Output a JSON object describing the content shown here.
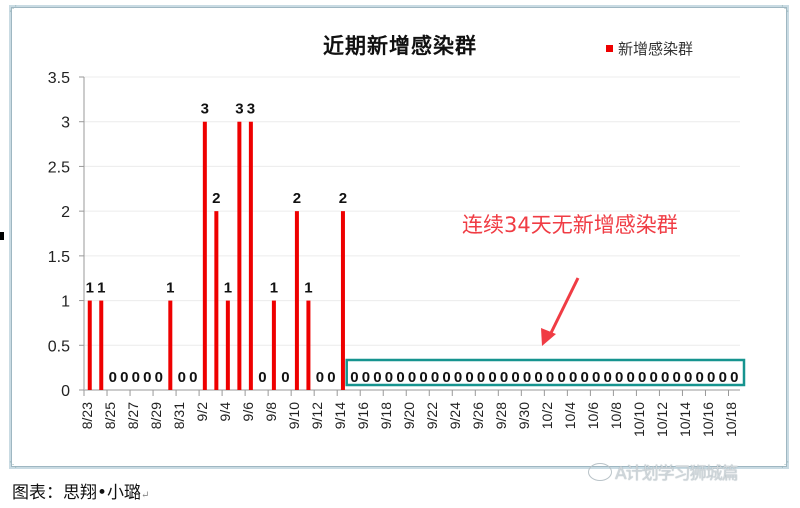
{
  "chart_data": {
    "type": "bar",
    "title": "近期新增感染群",
    "xlabel": "",
    "ylabel": "",
    "ylim": [
      0,
      3.5
    ],
    "yticks": [
      "0",
      "0.5",
      "1",
      "1.5",
      "2",
      "2.5",
      "3",
      "3.5"
    ],
    "grid": true,
    "legend_position": "top-right",
    "categories": [
      "8/23",
      "8/24",
      "8/25",
      "8/26",
      "8/27",
      "8/28",
      "8/29",
      "8/30",
      "8/31",
      "9/1",
      "9/2",
      "9/3",
      "9/4",
      "9/5",
      "9/6",
      "9/7",
      "9/8",
      "9/9",
      "9/10",
      "9/11",
      "9/12",
      "9/13",
      "9/14",
      "9/15",
      "9/16",
      "9/17",
      "9/18",
      "9/19",
      "9/20",
      "9/21",
      "9/22",
      "9/23",
      "9/24",
      "9/25",
      "9/26",
      "9/27",
      "9/28",
      "9/29",
      "9/30",
      "10/1",
      "10/2",
      "10/3",
      "10/4",
      "10/5",
      "10/6",
      "10/7",
      "10/8",
      "10/9",
      "10/10",
      "10/11",
      "10/12",
      "10/13",
      "10/14",
      "10/15",
      "10/16",
      "10/17",
      "10/18"
    ],
    "tick_labels": [
      "8/23",
      "8/25",
      "8/27",
      "8/29",
      "8/31",
      "9/2",
      "9/4",
      "9/6",
      "9/8",
      "9/10",
      "9/12",
      "9/14",
      "9/16",
      "9/18",
      "9/20",
      "9/22",
      "9/24",
      "9/26",
      "9/28",
      "9/30",
      "10/2",
      "10/4",
      "10/6",
      "10/8",
      "10/10",
      "10/12",
      "10/14",
      "10/16",
      "10/18"
    ],
    "series": [
      {
        "name": "新增感染群",
        "color": "#ee0000",
        "values": [
          1,
          1,
          0,
          0,
          0,
          0,
          0,
          1,
          0,
          0,
          3,
          2,
          1,
          3,
          3,
          0,
          1,
          0,
          2,
          1,
          0,
          0,
          2,
          0,
          0,
          0,
          0,
          0,
          0,
          0,
          0,
          0,
          0,
          0,
          0,
          0,
          0,
          0,
          0,
          0,
          0,
          0,
          0,
          0,
          0,
          0,
          0,
          0,
          0,
          0,
          0,
          0,
          0,
          0,
          0,
          0,
          0
        ]
      }
    ],
    "annotations": [
      {
        "text": "连续34天无新增感染群",
        "color": "#f03c44",
        "highlight_box_color": "#16948f",
        "highlight_range": [
          "9/15",
          "10/18"
        ]
      }
    ]
  },
  "legend": {
    "label": "新增感染群"
  },
  "annotation": {
    "text": "连续34天无新增感染群"
  },
  "caption": "图表：思翔•小璐",
  "caption_mark": "↵",
  "watermark": "A计划学习狮城篇"
}
